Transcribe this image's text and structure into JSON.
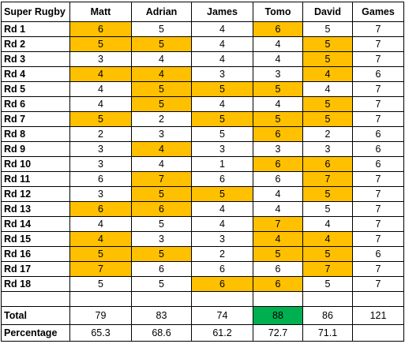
{
  "header": {
    "corner": "Super Rugby",
    "players": [
      "Matt",
      "Adrian",
      "James",
      "Tomo",
      "David"
    ],
    "games": "Games"
  },
  "colors": {
    "highlight": "#ffc000",
    "best_total": "#00b050"
  },
  "rows": [
    {
      "label": "Rd 1",
      "scores": [
        "6",
        "5",
        "4",
        "6",
        "5"
      ],
      "games": "7",
      "highlight": [
        0,
        3
      ]
    },
    {
      "label": "Rd 2",
      "scores": [
        "5",
        "5",
        "4",
        "4",
        "5"
      ],
      "games": "7",
      "highlight": [
        0,
        1,
        4
      ]
    },
    {
      "label": "Rd 3",
      "scores": [
        "3",
        "4",
        "4",
        "4",
        "5"
      ],
      "games": "7",
      "highlight": [
        4
      ]
    },
    {
      "label": "Rd 4",
      "scores": [
        "4",
        "4",
        "3",
        "3",
        "4"
      ],
      "games": "6",
      "highlight": [
        0,
        1,
        4
      ]
    },
    {
      "label": "Rd 5",
      "scores": [
        "4",
        "5",
        "5",
        "5",
        "4"
      ],
      "games": "7",
      "highlight": [
        1,
        2,
        3
      ]
    },
    {
      "label": "Rd 6",
      "scores": [
        "4",
        "5",
        "4",
        "4",
        "5"
      ],
      "games": "7",
      "highlight": [
        1,
        4
      ]
    },
    {
      "label": "Rd 7",
      "scores": [
        "5",
        "2",
        "5",
        "5",
        "5"
      ],
      "games": "7",
      "highlight": [
        0,
        2,
        3,
        4
      ]
    },
    {
      "label": "Rd 8",
      "scores": [
        "2",
        "3",
        "5",
        "6",
        "2"
      ],
      "games": "6",
      "highlight": [
        3
      ]
    },
    {
      "label": "Rd 9",
      "scores": [
        "3",
        "4",
        "3",
        "3",
        "3"
      ],
      "games": "6",
      "highlight": [
        1
      ]
    },
    {
      "label": "Rd 10",
      "scores": [
        "3",
        "4",
        "1",
        "6",
        "6"
      ],
      "games": "6",
      "highlight": [
        3,
        4
      ]
    },
    {
      "label": "Rd 11",
      "scores": [
        "6",
        "7",
        "6",
        "6",
        "7"
      ],
      "games": "7",
      "highlight": [
        1,
        4
      ]
    },
    {
      "label": "Rd 12",
      "scores": [
        "3",
        "5",
        "5",
        "4",
        "5"
      ],
      "games": "7",
      "highlight": [
        1,
        2,
        4
      ]
    },
    {
      "label": "Rd 13",
      "scores": [
        "6",
        "6",
        "4",
        "4",
        "5"
      ],
      "games": "7",
      "highlight": [
        0,
        1
      ]
    },
    {
      "label": "Rd 14",
      "scores": [
        "4",
        "5",
        "4",
        "7",
        "4"
      ],
      "games": "7",
      "highlight": [
        3
      ]
    },
    {
      "label": "Rd 15",
      "scores": [
        "4",
        "3",
        "3",
        "4",
        "4"
      ],
      "games": "7",
      "highlight": [
        0,
        3,
        4
      ]
    },
    {
      "label": "Rd 16",
      "scores": [
        "5",
        "5",
        "2",
        "5",
        "5"
      ],
      "games": "6",
      "highlight": [
        0,
        1,
        3,
        4
      ]
    },
    {
      "label": "Rd 17",
      "scores": [
        "7",
        "6",
        "6",
        "6",
        "7"
      ],
      "games": "7",
      "highlight": [
        0,
        4
      ]
    },
    {
      "label": "Rd 18",
      "scores": [
        "5",
        "5",
        "6",
        "6",
        "5"
      ],
      "games": "7",
      "highlight": [
        2,
        3
      ]
    }
  ],
  "total": {
    "label": "Total",
    "scores": [
      "79",
      "83",
      "74",
      "88",
      "86"
    ],
    "games": "121",
    "best_index": 3
  },
  "percentage": {
    "label": "Percentage",
    "scores": [
      "65.3",
      "68.6",
      "61.2",
      "72.7",
      "71.1"
    ],
    "games": ""
  }
}
